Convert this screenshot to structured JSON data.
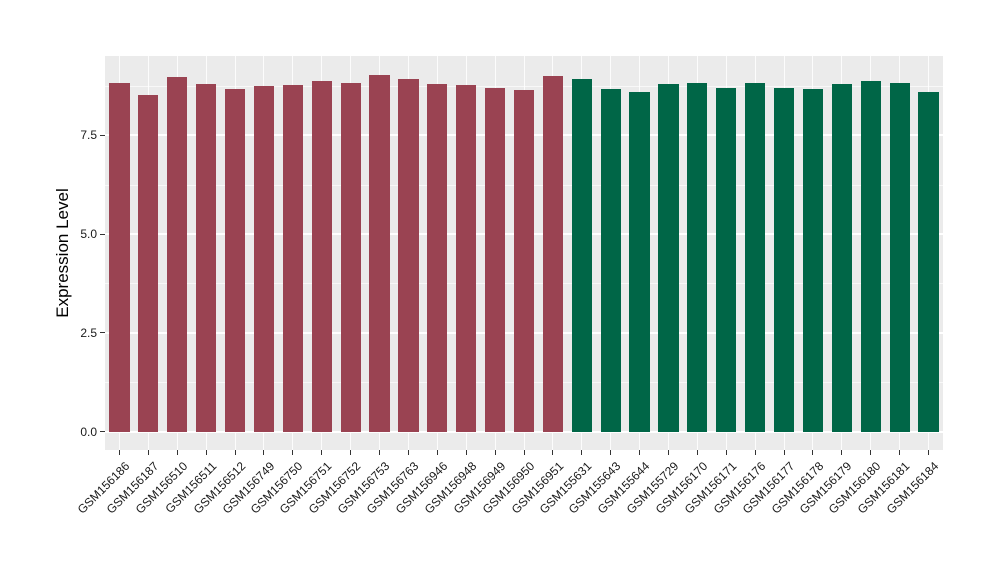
{
  "figure": {
    "background": "#FFFFFF",
    "panel_background": "#EBEBEB",
    "grid_color": "#FFFFFF",
    "axis_text_color": "#1A1A1A",
    "axis_title_color": "#000000",
    "tick_mark_color": "#333333"
  },
  "chart_data": {
    "type": "bar",
    "title": "",
    "xlabel": "",
    "ylabel": "Expression Level",
    "ylim": [
      -0.46,
      9.5
    ],
    "yticks": [
      0.0,
      2.5,
      5.0,
      7.5
    ],
    "ytick_labels": [
      "0.0",
      "2.5",
      "5.0",
      "7.5"
    ],
    "yticks_minor": [
      1.25,
      3.75,
      6.25,
      8.75
    ],
    "grid": "horizontal major+minor white lines, vertical white line at each category center",
    "legend_position": "none",
    "bar_width_fraction": 0.7,
    "group_colors": {
      "red": "#9A4352",
      "green": "#006647"
    },
    "samples": [
      {
        "label": "GSM156186",
        "value": 8.83,
        "group": "red"
      },
      {
        "label": "GSM156187",
        "value": 8.51,
        "group": "red"
      },
      {
        "label": "GSM156510",
        "value": 8.98,
        "group": "red"
      },
      {
        "label": "GSM156511",
        "value": 8.8,
        "group": "red"
      },
      {
        "label": "GSM156512",
        "value": 8.66,
        "group": "red"
      },
      {
        "label": "GSM156749",
        "value": 8.75,
        "group": "red"
      },
      {
        "label": "GSM156750",
        "value": 8.77,
        "group": "red"
      },
      {
        "label": "GSM156751",
        "value": 8.88,
        "group": "red"
      },
      {
        "label": "GSM156752",
        "value": 8.83,
        "group": "red"
      },
      {
        "label": "GSM156753",
        "value": 9.02,
        "group": "red"
      },
      {
        "label": "GSM156763",
        "value": 8.91,
        "group": "red"
      },
      {
        "label": "GSM156946",
        "value": 8.79,
        "group": "red"
      },
      {
        "label": "GSM156948",
        "value": 8.76,
        "group": "red"
      },
      {
        "label": "GSM156949",
        "value": 8.69,
        "group": "red"
      },
      {
        "label": "GSM156950",
        "value": 8.65,
        "group": "red"
      },
      {
        "label": "GSM156951",
        "value": 8.99,
        "group": "red"
      },
      {
        "label": "GSM155631",
        "value": 8.92,
        "group": "green"
      },
      {
        "label": "GSM155643",
        "value": 8.67,
        "group": "green"
      },
      {
        "label": "GSM155644",
        "value": 8.6,
        "group": "green"
      },
      {
        "label": "GSM155729",
        "value": 8.78,
        "group": "green"
      },
      {
        "label": "GSM156170",
        "value": 8.82,
        "group": "green"
      },
      {
        "label": "GSM156171",
        "value": 8.69,
        "group": "green"
      },
      {
        "label": "GSM156176",
        "value": 8.82,
        "group": "green"
      },
      {
        "label": "GSM156177",
        "value": 8.68,
        "group": "green"
      },
      {
        "label": "GSM156178",
        "value": 8.66,
        "group": "green"
      },
      {
        "label": "GSM156179",
        "value": 8.8,
        "group": "green"
      },
      {
        "label": "GSM156180",
        "value": 8.87,
        "group": "green"
      },
      {
        "label": "GSM156181",
        "value": 8.83,
        "group": "green"
      },
      {
        "label": "GSM156184",
        "value": 8.59,
        "group": "green"
      }
    ]
  }
}
